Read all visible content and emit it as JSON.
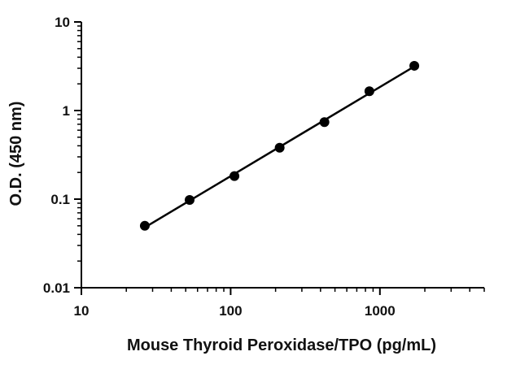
{
  "chart_data": {
    "type": "scatter",
    "title": "",
    "xlabel": "Mouse Thyroid Peroxidase/TPO (pg/mL)",
    "ylabel": "O.D. (450 nm)",
    "x_scale": "log",
    "y_scale": "log",
    "xlim": [
      10,
      5000
    ],
    "ylim": [
      0.01,
      10
    ],
    "x_ticks": [
      {
        "value": 10,
        "label": "10"
      },
      {
        "value": 100,
        "label": "100"
      },
      {
        "value": 1000,
        "label": "1000"
      }
    ],
    "y_ticks": [
      {
        "value": 0.01,
        "label": "0.01"
      },
      {
        "value": 0.1,
        "label": "0.1"
      },
      {
        "value": 1,
        "label": "1"
      },
      {
        "value": 10,
        "label": "10"
      }
    ],
    "grid": false,
    "legend": "none",
    "fit_line": true,
    "series": [
      {
        "x": [
          26.6,
          53.1,
          106,
          213,
          425,
          850,
          1700
        ],
        "y": [
          0.05,
          0.098,
          0.182,
          0.38,
          0.74,
          1.65,
          3.2
        ]
      }
    ],
    "colors": {
      "marker": "#000000",
      "line": "#000000",
      "axis": "#000000"
    }
  }
}
